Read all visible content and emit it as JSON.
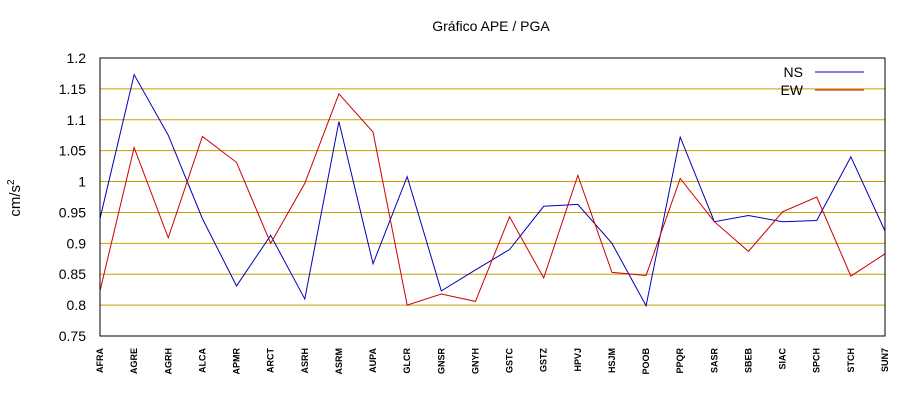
{
  "chart_data": {
    "type": "line",
    "title": "Gráfico  APE / PGA",
    "ylabel_base": "cm/s",
    "ylabel_exp": "2",
    "xlabel": "",
    "ylim": [
      0.75,
      1.2
    ],
    "yticks": [
      0.75,
      0.8,
      0.85,
      0.9,
      0.95,
      1.0,
      1.05,
      1.1,
      1.15,
      1.2
    ],
    "ytick_labels": [
      "0.75",
      "0.8",
      "0.85",
      "0.9",
      "0.95",
      "1",
      "1.05",
      "1.1",
      "1.15",
      "1.2"
    ],
    "grid": true,
    "legend_position": "top-right",
    "categories": [
      "AFRA",
      "AGRE",
      "AGRH",
      "ALCA",
      "APMR",
      "ARCT",
      "ASRH",
      "ASRM",
      "AUPA",
      "GLCR",
      "GNSR",
      "GNYH",
      "GSTC",
      "GSTZ",
      "HPVJ",
      "HSJM",
      "POOB",
      "PPQR",
      "SASR",
      "SBEB",
      "SIAC",
      "SPCH",
      "STCH",
      "SUN7"
    ],
    "series": [
      {
        "name": "NS",
        "color": "#0000bb",
        "values": [
          0.94,
          1.173,
          1.075,
          0.94,
          0.831,
          0.913,
          0.81,
          1.097,
          0.867,
          1.008,
          0.823,
          0.857,
          0.89,
          0.96,
          0.963,
          0.9,
          0.799,
          1.072,
          0.935,
          0.945,
          0.935,
          0.937,
          1.04,
          0.92
        ]
      },
      {
        "name": "EW",
        "color": "#cc0000",
        "values": [
          0.823,
          1.055,
          0.909,
          1.073,
          1.031,
          0.9,
          0.997,
          1.142,
          1.08,
          0.8,
          0.818,
          0.806,
          0.943,
          0.844,
          1.01,
          0.853,
          0.848,
          1.005,
          0.935,
          0.887,
          0.951,
          0.975,
          0.847,
          0.883
        ]
      }
    ],
    "grid_color": "#c8a000",
    "axis_color": "#000000"
  }
}
